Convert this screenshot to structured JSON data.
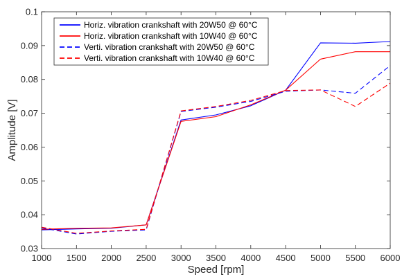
{
  "chart_data": {
    "type": "line",
    "xlabel": "Speed [rpm]",
    "ylabel": "Amplitude [V]",
    "xlim": [
      1000,
      6000
    ],
    "ylim": [
      0.03,
      0.1
    ],
    "xticks": [
      1000,
      1500,
      2000,
      2500,
      3000,
      3500,
      4000,
      4500,
      5000,
      5500,
      6000
    ],
    "yticks": [
      0.03,
      0.04,
      0.05,
      0.06,
      0.07,
      0.08,
      0.09,
      0.1
    ],
    "ytick_labels": [
      "0.03",
      "0.04",
      "0.05",
      "0.06",
      "0.07",
      "0.08",
      "0.09",
      "0.1"
    ],
    "grid": false,
    "legend_position": "top-left",
    "x": [
      1000,
      1500,
      2000,
      2500,
      3000,
      3500,
      4000,
      4500,
      5000,
      5500,
      6000
    ],
    "series": [
      {
        "name": "Horiz. vibration crankshaft with 20W50 @ 60°C",
        "color": "#0000ff",
        "style": "solid",
        "values": [
          0.0355,
          0.0358,
          0.036,
          0.037,
          0.068,
          0.0695,
          0.0722,
          0.0768,
          0.0908,
          0.0907,
          0.0912
        ]
      },
      {
        "name": "Horiz. vibration crankshaft with 10W40 @ 60°C",
        "color": "#ff0000",
        "style": "solid",
        "values": [
          0.0357,
          0.036,
          0.0361,
          0.037,
          0.0676,
          0.069,
          0.0725,
          0.0768,
          0.086,
          0.0882,
          0.0882
        ]
      },
      {
        "name": "Verti. vibration crankshaft with 20W50 @ 60°C",
        "color": "#0000ff",
        "style": "dashed",
        "values": [
          0.0361,
          0.0343,
          0.0351,
          0.0355,
          0.0705,
          0.0718,
          0.0735,
          0.0765,
          0.0769,
          0.0759,
          0.0841
        ]
      },
      {
        "name": "Verti. vibration crankshaft with 10W40 @ 60°C",
        "color": "#ff0000",
        "style": "dashed",
        "values": [
          0.0363,
          0.0345,
          0.0352,
          0.0357,
          0.0707,
          0.072,
          0.0738,
          0.0767,
          0.0769,
          0.072,
          0.0789
        ]
      }
    ]
  }
}
